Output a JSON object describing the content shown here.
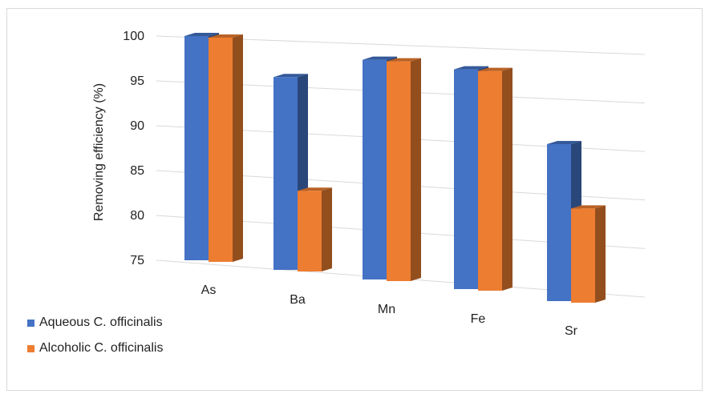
{
  "chart_data": {
    "type": "bar",
    "categories": [
      "As",
      "Ba",
      "Mn",
      "Fe",
      "Sr"
    ],
    "series": [
      {
        "name": "Aqueous C. officinalis",
        "values": [
          100,
          96.5,
          99.5,
          99.5,
          92.5
        ],
        "color": "#4472c4"
      },
      {
        "name": "Alcoholic C. officinalis",
        "values": [
          100,
          84,
          99.5,
          99.5,
          85.5
        ],
        "color": "#ed7d31"
      }
    ],
    "xlabel": "",
    "ylabel": "Removing efficiency (%)",
    "ylim": [
      75,
      100
    ],
    "yticks": [
      75,
      80,
      85,
      90,
      95,
      100
    ],
    "grid": true,
    "legend": "bottom-left",
    "style": "3d-clustered-column"
  }
}
